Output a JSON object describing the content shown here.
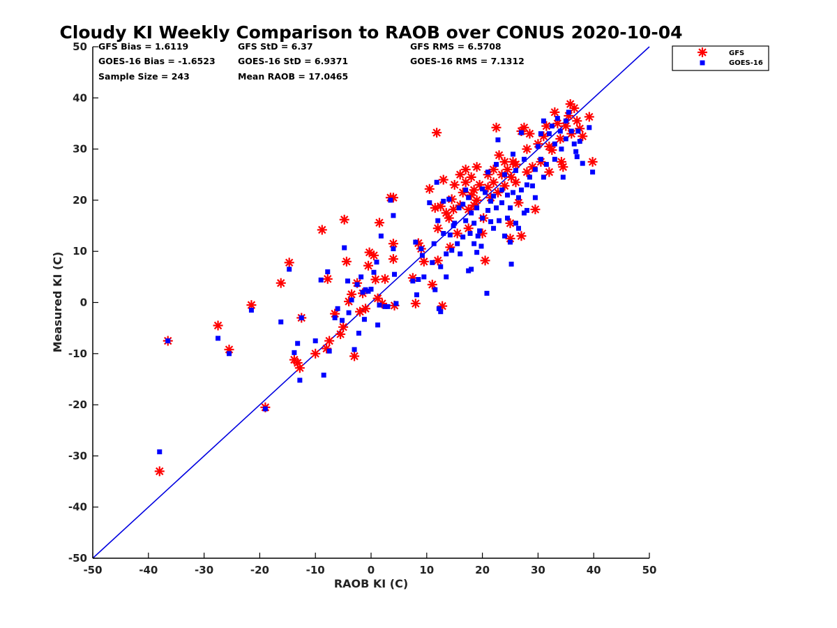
{
  "chart_data": {
    "type": "scatter",
    "title": "Cloudy KI Weekly Comparison to RAOB over CONUS 2020-10-04",
    "xlabel": "RAOB KI (C)",
    "ylabel": "Measured KI (C)",
    "xlim": [
      -50,
      50
    ],
    "ylim": [
      -50,
      50
    ],
    "xticks": [
      "-50",
      "-40",
      "-30",
      "-20",
      "-10",
      "0",
      "10",
      "20",
      "30",
      "40",
      "50"
    ],
    "yticks": [
      "-50",
      "-40",
      "-30",
      "-20",
      "-10",
      "0",
      "10",
      "20",
      "30",
      "40",
      "50"
    ],
    "grid": false,
    "legend_position": "outside top-right",
    "reference_line": {
      "from": [
        -50,
        -50
      ],
      "to": [
        50,
        50
      ],
      "color": "#0000e0"
    },
    "stats": [
      [
        "GFS Bias = 1.6119",
        "GFS StD = 6.37",
        "GFS RMS = 6.5708"
      ],
      [
        "GOES-16 Bias = -1.6523",
        "GOES-16 StD = 6.9371",
        "GOES-16 RMS = 7.1312"
      ],
      [
        "Sample Size = 243",
        "Mean RAOB = 17.0465",
        ""
      ]
    ],
    "series": [
      {
        "name": "GFS",
        "marker": "asterisk",
        "color": "#ff0000",
        "points": [
          [
            -38,
            -33
          ],
          [
            -36.5,
            -7.5
          ],
          [
            -27.5,
            -4.5
          ],
          [
            -25.5,
            -9.2
          ],
          [
            -21.5,
            -0.5
          ],
          [
            -19,
            -20.5
          ],
          [
            -16.2,
            3.8
          ],
          [
            -14.7,
            7.8
          ],
          [
            -13.8,
            -11.2
          ],
          [
            -13.2,
            -11.8
          ],
          [
            -12.8,
            -12.8
          ],
          [
            -12.5,
            -3
          ],
          [
            -10,
            -10
          ],
          [
            -8.8,
            14.2
          ],
          [
            -8,
            -9
          ],
          [
            -7.8,
            4.6
          ],
          [
            -7.5,
            -7.5
          ],
          [
            -6.5,
            -2.2
          ],
          [
            -5.5,
            -6.2
          ],
          [
            -5,
            -4.8
          ],
          [
            -4.8,
            16.2
          ],
          [
            -4.4,
            8
          ],
          [
            -4,
            0.2
          ],
          [
            -3.5,
            1.6
          ],
          [
            -3,
            -10.5
          ],
          [
            -2.5,
            3.8
          ],
          [
            -2,
            -1.8
          ],
          [
            -1.5,
            1.8
          ],
          [
            -1,
            -1.2
          ],
          [
            -0.5,
            7.2
          ],
          [
            -0.3,
            9.8
          ],
          [
            0.5,
            9.2
          ],
          [
            0.8,
            4.5
          ],
          [
            1.2,
            0.8
          ],
          [
            1.5,
            15.6
          ],
          [
            2,
            -0.2
          ],
          [
            2.5,
            4.6
          ],
          [
            3.5,
            20.5
          ],
          [
            4,
            11.5
          ],
          [
            4,
            20.5
          ],
          [
            4,
            8.5
          ],
          [
            4.2,
            -0.6
          ],
          [
            7.5,
            4.8
          ],
          [
            8,
            -0.2
          ],
          [
            8.5,
            11.6
          ],
          [
            9,
            10.5
          ],
          [
            9.5,
            8
          ],
          [
            10.5,
            22.2
          ],
          [
            11,
            3.5
          ],
          [
            11.5,
            18.5
          ],
          [
            11.8,
            33.2
          ],
          [
            12,
            14.5
          ],
          [
            12,
            8.2
          ],
          [
            12.5,
            18.8
          ],
          [
            12.8,
            -0.7
          ],
          [
            13,
            24
          ],
          [
            13.5,
            17.5
          ],
          [
            14,
            16.5
          ],
          [
            14.2,
            10.8
          ],
          [
            14.5,
            20.2
          ],
          [
            14.8,
            18.2
          ],
          [
            15,
            23
          ],
          [
            15.5,
            13.5
          ],
          [
            16,
            25
          ],
          [
            16,
            19
          ],
          [
            16.5,
            21.5
          ],
          [
            17,
            26
          ],
          [
            17,
            23.5
          ],
          [
            17.5,
            18.2
          ],
          [
            17.5,
            14.5
          ],
          [
            18,
            21
          ],
          [
            18,
            24.5
          ],
          [
            18.5,
            22
          ],
          [
            18.5,
            19
          ],
          [
            19,
            26.5
          ],
          [
            19,
            20
          ],
          [
            19.5,
            23
          ],
          [
            20,
            13.5
          ],
          [
            20.2,
            16.5
          ],
          [
            20.5,
            8.2
          ],
          [
            21,
            25
          ],
          [
            21,
            22.5
          ],
          [
            21.5,
            20.5
          ],
          [
            22,
            26
          ],
          [
            22,
            23.5
          ],
          [
            22.5,
            34.2
          ],
          [
            22.8,
            21.5
          ],
          [
            23,
            28.8
          ],
          [
            23.5,
            25
          ],
          [
            24,
            27.5
          ],
          [
            24,
            22.8
          ],
          [
            24.5,
            26
          ],
          [
            25,
            15.5
          ],
          [
            25,
            12.5
          ],
          [
            25.2,
            24.5
          ],
          [
            25.5,
            27.5
          ],
          [
            26,
            27
          ],
          [
            26,
            23.5
          ],
          [
            26.5,
            19.5
          ],
          [
            27,
            33.5
          ],
          [
            27,
            13
          ],
          [
            27.5,
            34.2
          ],
          [
            28,
            25.5
          ],
          [
            28,
            30
          ],
          [
            28.5,
            33
          ],
          [
            29,
            26.5
          ],
          [
            29.5,
            18.2
          ],
          [
            30,
            31
          ],
          [
            30.5,
            27.5
          ],
          [
            31,
            32.5
          ],
          [
            31.5,
            34.5
          ],
          [
            32,
            30.5
          ],
          [
            32,
            25.5
          ],
          [
            32.5,
            29.8
          ],
          [
            33,
            37.2
          ],
          [
            33.5,
            35
          ],
          [
            34,
            32
          ],
          [
            34.2,
            27.5
          ],
          [
            34.5,
            26.5
          ],
          [
            35,
            34.5
          ],
          [
            35.5,
            36.5
          ],
          [
            35.8,
            38.8
          ],
          [
            36,
            33
          ],
          [
            36.5,
            38
          ],
          [
            37,
            35.5
          ],
          [
            37.5,
            34
          ],
          [
            38,
            32.5
          ],
          [
            39.2,
            36.3
          ],
          [
            39.8,
            27.5
          ]
        ]
      },
      {
        "name": "GOES-16",
        "marker": "square",
        "color": "#0000ff",
        "points": [
          [
            -38,
            -29.2
          ],
          [
            -36.5,
            -7.5
          ],
          [
            -27.5,
            -7
          ],
          [
            -25.5,
            -10
          ],
          [
            -21.5,
            -1.5
          ],
          [
            -19,
            -20.8
          ],
          [
            -16.2,
            -3.8
          ],
          [
            -14.7,
            6.5
          ],
          [
            -13.8,
            -9.8
          ],
          [
            -13.2,
            -8
          ],
          [
            -12.8,
            -15.2
          ],
          [
            -12.5,
            -3
          ],
          [
            -10,
            -7.5
          ],
          [
            -9,
            4.4
          ],
          [
            -8.5,
            -14.2
          ],
          [
            -7.8,
            6
          ],
          [
            -7.5,
            -9.5
          ],
          [
            -6.5,
            -3
          ],
          [
            -6,
            -1.2
          ],
          [
            -5.2,
            -3.5
          ],
          [
            -4.8,
            10.7
          ],
          [
            -4.2,
            4.2
          ],
          [
            -4,
            -2
          ],
          [
            -3.5,
            0.5
          ],
          [
            -3,
            -9.2
          ],
          [
            -2.5,
            3.5
          ],
          [
            -2.2,
            -6
          ],
          [
            -1.8,
            5
          ],
          [
            -1.5,
            2
          ],
          [
            -1.2,
            -3.3
          ],
          [
            -1,
            2.5
          ],
          [
            -0.5,
            2.2
          ],
          [
            0,
            2.6
          ],
          [
            0.5,
            5.9
          ],
          [
            1,
            7.9
          ],
          [
            1.2,
            -4.4
          ],
          [
            1.5,
            -0.5
          ],
          [
            1.8,
            13
          ],
          [
            2.5,
            -0.8
          ],
          [
            3,
            -0.8
          ],
          [
            3.5,
            20
          ],
          [
            4,
            17
          ],
          [
            4,
            10.5
          ],
          [
            4.2,
            5.5
          ],
          [
            4.5,
            -0.2
          ],
          [
            7.5,
            4.2
          ],
          [
            8,
            11.8
          ],
          [
            8.2,
            1.5
          ],
          [
            8.5,
            4.5
          ],
          [
            9,
            10.5
          ],
          [
            9.2,
            9.2
          ],
          [
            9.5,
            5
          ],
          [
            10.5,
            19.5
          ],
          [
            11,
            7.8
          ],
          [
            11.3,
            11.5
          ],
          [
            11.5,
            2.5
          ],
          [
            11.8,
            23.5
          ],
          [
            12,
            16
          ],
          [
            12.2,
            -1.2
          ],
          [
            12.5,
            -1.8
          ],
          [
            12.5,
            7
          ],
          [
            13,
            19.8
          ],
          [
            13,
            13.5
          ],
          [
            13.5,
            5
          ],
          [
            13.5,
            9.5
          ],
          [
            14,
            20.2
          ],
          [
            14.2,
            13.2
          ],
          [
            14.5,
            10.2
          ],
          [
            14.8,
            15
          ],
          [
            15,
            15.5
          ],
          [
            15.5,
            11.5
          ],
          [
            15.8,
            18.5
          ],
          [
            16,
            9.5
          ],
          [
            16.5,
            12.8
          ],
          [
            16.5,
            19.2
          ],
          [
            17,
            22
          ],
          [
            17,
            16
          ],
          [
            17.5,
            6.2
          ],
          [
            17.5,
            20.5
          ],
          [
            17.8,
            13.5
          ],
          [
            18,
            6.5
          ],
          [
            18,
            17.5
          ],
          [
            18.5,
            11.5
          ],
          [
            18.5,
            15.5
          ],
          [
            19,
            9.8
          ],
          [
            19,
            18.5
          ],
          [
            19.2,
            13
          ],
          [
            19.5,
            14
          ],
          [
            19.8,
            11
          ],
          [
            20,
            16.5
          ],
          [
            20,
            22.2
          ],
          [
            20.5,
            21.5
          ],
          [
            20.8,
            1.8
          ],
          [
            21,
            18
          ],
          [
            21,
            25.5
          ],
          [
            21.5,
            15.8
          ],
          [
            21.5,
            19.8
          ],
          [
            22,
            20.8
          ],
          [
            22,
            14.5
          ],
          [
            22.5,
            18.5
          ],
          [
            22.5,
            27
          ],
          [
            22.8,
            31.8
          ],
          [
            23,
            16
          ],
          [
            23.5,
            19.5
          ],
          [
            23.5,
            22
          ],
          [
            24,
            13
          ],
          [
            24,
            25
          ],
          [
            24.5,
            16.5
          ],
          [
            24.5,
            21
          ],
          [
            25,
            18.5
          ],
          [
            25,
            11.8
          ],
          [
            25.2,
            7.5
          ],
          [
            25.5,
            21.5
          ],
          [
            25.5,
            29
          ],
          [
            26,
            15.5
          ],
          [
            26,
            25.8
          ],
          [
            26.5,
            14.5
          ],
          [
            26.5,
            20.5
          ],
          [
            27,
            22
          ],
          [
            27,
            33.2
          ],
          [
            27.5,
            17.5
          ],
          [
            27.5,
            28
          ],
          [
            28,
            23
          ],
          [
            28,
            18
          ],
          [
            28.5,
            24.5
          ],
          [
            29,
            22.8
          ],
          [
            29.5,
            20.5
          ],
          [
            29.5,
            26
          ],
          [
            30,
            30.5
          ],
          [
            30.5,
            28
          ],
          [
            30.5,
            33
          ],
          [
            31,
            24.5
          ],
          [
            31,
            35.5
          ],
          [
            31.5,
            27
          ],
          [
            32,
            33
          ],
          [
            32.5,
            34.5
          ],
          [
            33,
            28
          ],
          [
            33,
            31
          ],
          [
            33.5,
            36
          ],
          [
            34,
            33.5
          ],
          [
            34.2,
            30
          ],
          [
            34.5,
            24.5
          ],
          [
            35,
            35.5
          ],
          [
            35,
            32
          ],
          [
            35.5,
            37.2
          ],
          [
            36,
            33.5
          ],
          [
            36.5,
            31
          ],
          [
            36.8,
            29.5
          ],
          [
            37,
            28.5
          ],
          [
            37.2,
            33.5
          ],
          [
            37.5,
            31.5
          ],
          [
            38,
            27.2
          ],
          [
            39.2,
            34.2
          ],
          [
            39.8,
            25.5
          ]
        ]
      }
    ]
  }
}
